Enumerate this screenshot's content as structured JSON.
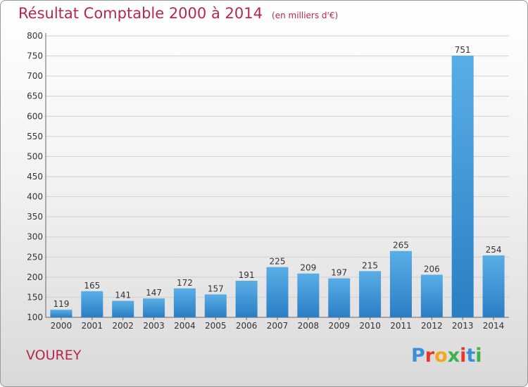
{
  "header": {
    "title": "Résultat Comptable 2000 à 2014",
    "subtitle": "(en milliers d'€)"
  },
  "footer": {
    "commune": "VOUREY",
    "logo": "Proxiti"
  },
  "colors": {
    "title": "#b5284a",
    "bar_light": "#5aaee6",
    "bar_dark": "#2b7ec4",
    "grid": "#d0d0d0",
    "logo": [
      "#3a8fd8",
      "#e8372d",
      "#f2a81d",
      "#3bb34a",
      "#e8372d",
      "#3a8fd8",
      "#3bb34a"
    ]
  },
  "chart_data": {
    "type": "bar",
    "categories": [
      "2000",
      "2001",
      "2002",
      "2003",
      "2004",
      "2005",
      "2006",
      "2007",
      "2008",
      "2009",
      "2010",
      "2011",
      "2012",
      "2013",
      "2014"
    ],
    "values": [
      119,
      165,
      141,
      147,
      172,
      157,
      191,
      225,
      209,
      197,
      215,
      265,
      206,
      751,
      254
    ],
    "ylim": [
      100,
      800
    ],
    "yticks": [
      100,
      150,
      200,
      250,
      300,
      350,
      400,
      450,
      500,
      550,
      600,
      650,
      700,
      750,
      800
    ],
    "grid": true
  }
}
